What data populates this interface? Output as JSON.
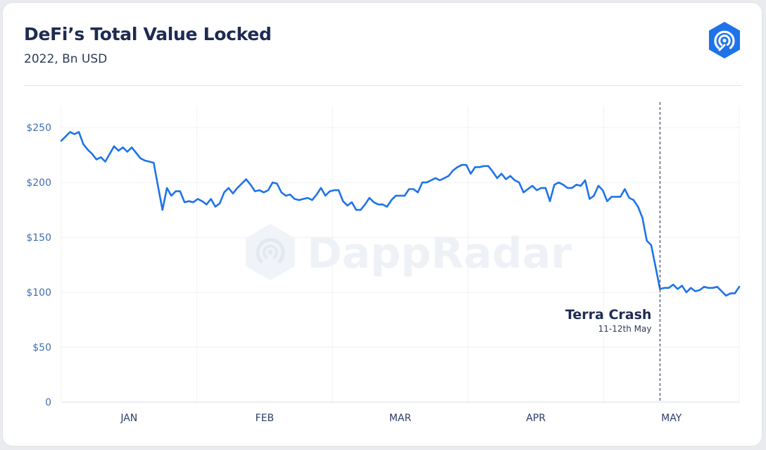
{
  "header": {
    "title": "DeFi’s Total Value Locked",
    "subtitle": "2022, Bn USD"
  },
  "brand": {
    "logo_icon": "dappradar-logo-icon",
    "watermark_text": "DappRadar",
    "accent_color": "#1f73e8"
  },
  "chart_data": {
    "type": "line",
    "title": "DeFi’s Total Value Locked",
    "subtitle": "2022, Bn USD",
    "xlabel": "",
    "ylabel": "",
    "y_ticks": [
      {
        "value": 0,
        "label": "0"
      },
      {
        "value": 50,
        "label": "$50"
      },
      {
        "value": 100,
        "label": "$100"
      },
      {
        "value": 150,
        "label": "$150"
      },
      {
        "value": 200,
        "label": "$200"
      },
      {
        "value": 250,
        "label": "$250"
      }
    ],
    "x_tick_labels": [
      "JAN",
      "FEB",
      "MAR",
      "APR",
      "MAY"
    ],
    "ylim": [
      0,
      270
    ],
    "grid": true,
    "line_color": "#1f73e8",
    "series": [
      {
        "values": [
          238,
          242,
          246,
          244,
          246,
          235,
          230,
          226,
          221,
          223,
          219,
          226,
          233,
          229,
          232,
          228,
          232,
          227,
          222,
          220,
          219,
          218,
          196,
          175,
          195,
          188,
          192,
          192,
          182,
          183,
          182,
          185,
          183,
          180,
          185,
          178,
          181,
          191,
          195,
          190,
          195,
          199,
          203,
          198,
          192,
          193,
          191,
          193,
          200,
          199,
          191,
          188,
          189,
          185,
          184,
          185,
          186,
          184,
          189,
          195,
          188,
          192,
          193,
          193,
          183,
          179,
          182,
          175,
          175,
          180,
          186,
          182,
          180,
          180,
          178,
          184,
          188,
          188,
          188,
          194,
          194,
          191,
          200,
          200,
          202,
          204,
          202,
          204,
          206,
          211,
          214,
          216,
          216,
          208,
          214,
          214,
          215,
          215,
          210,
          204,
          208,
          203,
          206,
          202,
          200,
          191,
          194,
          197,
          193,
          195,
          195,
          183,
          198,
          200,
          198,
          195,
          195,
          198,
          197,
          202,
          185,
          188,
          197,
          193,
          183,
          187,
          187,
          187,
          194,
          186,
          184,
          178,
          168,
          147,
          143,
          123,
          103,
          104,
          104,
          107,
          103,
          106,
          100,
          104,
          101,
          102,
          105,
          104,
          104,
          105,
          101,
          97,
          99,
          99,
          105
        ]
      }
    ],
    "annotation": {
      "title": "Terra Crash",
      "subtitle": "11-12th May",
      "index": 136
    }
  }
}
